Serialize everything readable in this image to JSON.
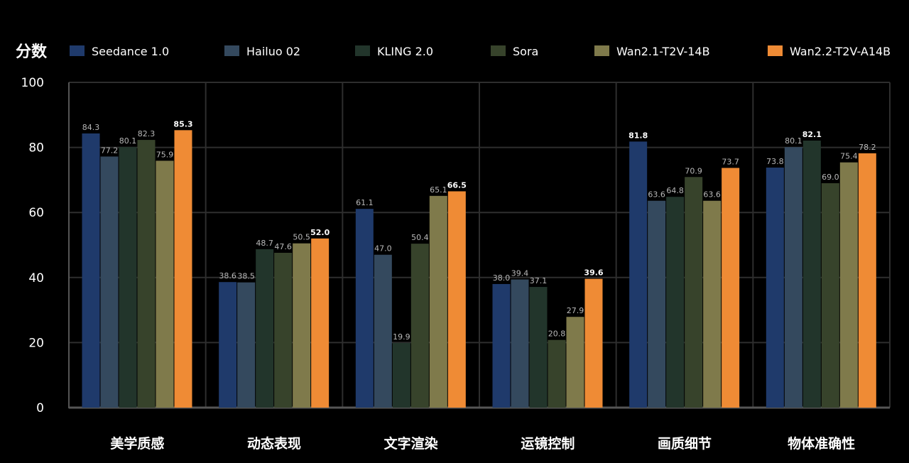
{
  "chart_data": {
    "type": "bar",
    "ylabel": "分数",
    "ylim": [
      0,
      100
    ],
    "yticks": [
      0,
      20,
      40,
      60,
      80,
      100
    ],
    "grid": true,
    "legend_position": "top",
    "categories": [
      "美学质感",
      "动态表现",
      "文字渲染",
      "运镜控制",
      "画质细节",
      "物体准确性"
    ],
    "series": [
      {
        "name": "Seedance 1.0",
        "color": "#1f3a6b",
        "values": [
          84.3,
          38.6,
          61.1,
          38.0,
          81.8,
          73.8
        ],
        "labels": [
          "84.3",
          "38.6",
          "61.1",
          "38.0",
          "81.8",
          "73.8"
        ]
      },
      {
        "name": "Hailuo 02",
        "color": "#34495e",
        "values": [
          77.2,
          38.5,
          47.0,
          39.4,
          63.6,
          80.1
        ],
        "labels": [
          "77.2",
          "38.5",
          "47.0",
          "39.4",
          "63.6",
          "80.1"
        ]
      },
      {
        "name": "KLING 2.0",
        "color": "#22352b",
        "values": [
          80.1,
          48.7,
          19.9,
          37.1,
          64.8,
          82.1
        ],
        "labels": [
          "80.1",
          "48.7",
          "19.9",
          "37.1",
          "64.8",
          "82.1"
        ]
      },
      {
        "name": "Sora",
        "color": "#37432b",
        "values": [
          82.3,
          47.6,
          50.4,
          20.8,
          70.9,
          69.0
        ],
        "labels": [
          "82.3",
          "47.6",
          "50.4",
          "20.8",
          "70.9",
          "69.0"
        ]
      },
      {
        "name": "Wan2.1-T2V-14B",
        "color": "#7f7a4b",
        "values": [
          75.9,
          50.5,
          65.1,
          27.9,
          63.6,
          75.4
        ],
        "labels": [
          "75.9",
          "50.5",
          "65.1",
          "27.9",
          "63.6",
          "75.4"
        ]
      },
      {
        "name": "Wan2.2-T2V-A14B",
        "color": "#ef8b35",
        "values": [
          85.3,
          52.0,
          66.5,
          39.6,
          73.7,
          78.2
        ],
        "labels": [
          "85.3",
          "52.0",
          "66.5",
          "39.6",
          "73.7",
          "78.2"
        ]
      }
    ]
  }
}
